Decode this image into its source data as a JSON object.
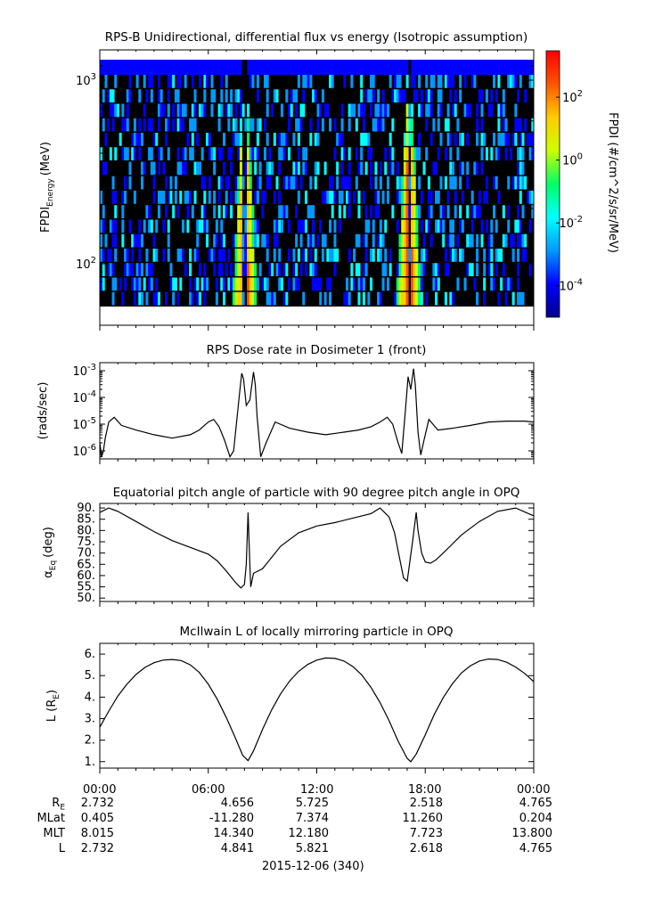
{
  "chart_data": [
    {
      "type": "heatmap",
      "title": "RPS-B  Unidirectional, differential flux vs energy (Isotropic assumption)",
      "ylabel": "FPDI",
      "ylabel_sub": "Energy",
      "ylabel_unit": "(MeV)",
      "y_scale": "log",
      "y_ticks": [
        {
          "base": "10",
          "exp": "2",
          "value": 100
        },
        {
          "base": "10",
          "exp": "3",
          "value": 1000
        }
      ],
      "colorbar": {
        "label": "FPDI (#/cm^2/s/sr/MeV)",
        "scale": "log",
        "range": [
          1e-05,
          3000
        ],
        "ticks": [
          {
            "base": "10",
            "exp": "2",
            "value": 100
          },
          {
            "base": "10",
            "exp": "0",
            "value": 1
          },
          {
            "base": "10",
            "exp": "-2",
            "value": 0.01
          },
          {
            "base": "10",
            "exp": "-4",
            "value": 0.0001
          }
        ]
      },
      "bright_bands_hours": [
        7.9,
        8.15,
        16.95,
        17.25
      ],
      "gap_hours": [
        8.0,
        17.1
      ],
      "colors": [
        "#00008b",
        "#0000ff",
        "#0099ff",
        "#00ffff",
        "#00ff66",
        "#ccff00",
        "#ffcc00",
        "#ff5500",
        "#ff0000"
      ]
    },
    {
      "type": "line",
      "title": "RPS  Dose rate in Dosimeter 1 (front)",
      "ylabel": "(rads/sec)",
      "y_scale": "log",
      "ylim": [
        5e-07,
        0.002
      ],
      "y_ticks": [
        {
          "base": "10",
          "exp": "-3",
          "value": 0.001
        },
        {
          "base": "10",
          "exp": "-4",
          "value": 0.0001
        },
        {
          "base": "10",
          "exp": "-5",
          "value": 1e-05
        },
        {
          "base": "10",
          "exp": "-6",
          "value": 1e-06
        }
      ],
      "series": [
        {
          "x": [
            0,
            0.1,
            0.2,
            0.3,
            0.5,
            0.8,
            1.2,
            2.0,
            3.0,
            4.0,
            5.0,
            5.5,
            6.0,
            6.3,
            6.6,
            6.9,
            7.2,
            7.4,
            7.6,
            7.75,
            7.85,
            7.95,
            8.1,
            8.3,
            8.5,
            8.6,
            8.7,
            8.9,
            9.2,
            9.7,
            10.5,
            11.5,
            12.5,
            13.5,
            14.3,
            15.0,
            15.5,
            15.9,
            16.2,
            16.5,
            16.7,
            16.9,
            17.05,
            17.2,
            17.35,
            17.45,
            17.6,
            17.75,
            17.9,
            18.2,
            18.7,
            19.5,
            20.5,
            21.5,
            22.5,
            23.5,
            24
          ],
          "y": [
            2e-06,
            6e-07,
            1e-06,
            3e-06,
            1.2e-05,
            1.8e-05,
            9e-06,
            6e-06,
            4e-06,
            3e-06,
            4e-06,
            6e-06,
            1.2e-05,
            1.5e-05,
            8e-06,
            2.5e-06,
            6e-07,
            1e-06,
            2e-05,
            0.0002,
            0.0008,
            0.0005,
            5e-05,
            8e-05,
            0.0009,
            0.0003,
            2e-05,
            6e-07,
            2e-06,
            1.2e-05,
            7e-06,
            5e-06,
            4e-06,
            5e-06,
            6e-06,
            8e-06,
            1.2e-05,
            1.8e-05,
            1e-05,
            2e-06,
            8e-07,
            3e-05,
            0.0006,
            0.0002,
            0.0012,
            0.0003,
            5e-06,
            7e-07,
            2e-06,
            1.5e-05,
            6e-06,
            7e-06,
            9e-06,
            1.2e-05,
            1.3e-05,
            1.3e-05,
            1.2e-05
          ]
        }
      ]
    },
    {
      "type": "line",
      "title": "Equatorial pitch angle of particle with 90 degree pitch angle in OPQ",
      "ylabel": "α",
      "ylabel_sub": "Eq",
      "ylabel_unit": "(deg)",
      "ylim": [
        48.5,
        92
      ],
      "y_ticks": [
        50,
        55,
        60,
        65,
        70,
        75,
        80,
        85,
        90
      ],
      "series": [
        {
          "x": [
            0,
            0.5,
            1,
            2,
            3,
            4,
            5,
            6,
            6.5,
            7,
            7.5,
            7.8,
            8.0,
            8.1,
            8.2,
            8.3,
            8.35,
            8.5,
            9,
            10,
            11,
            12,
            13,
            14,
            15,
            15.5,
            16,
            16.3,
            16.6,
            16.8,
            17.0,
            17.3,
            17.5,
            17.6,
            17.8,
            18.0,
            18.3,
            18.6,
            19,
            19.5,
            20,
            21,
            22,
            23,
            24
          ],
          "y": [
            88,
            90,
            88.5,
            84,
            79.5,
            75.5,
            72.5,
            69.5,
            66.5,
            62,
            57,
            54.5,
            56,
            65,
            88,
            65,
            55,
            61,
            63,
            73,
            79,
            82,
            83.5,
            85.5,
            87.5,
            90,
            86,
            79,
            67,
            59,
            57.5,
            75,
            88,
            80,
            70,
            66,
            65.5,
            67,
            70,
            74,
            78,
            84,
            88.5,
            90,
            86.5
          ]
        }
      ]
    },
    {
      "type": "line",
      "title": "McIlwain L of locally mirroring particle in OPQ",
      "ylabel": "L (R",
      "ylabel_sub": "E",
      "ylabel_unit": ")",
      "ylim": [
        0.7,
        6.5
      ],
      "y_ticks": [
        1,
        2,
        3,
        4,
        5,
        6
      ],
      "series": [
        {
          "x": [
            0,
            0.5,
            1,
            1.5,
            2,
            2.5,
            3,
            3.5,
            4,
            4.5,
            5,
            5.5,
            6,
            6.5,
            7,
            7.5,
            7.9,
            8.2,
            8.5,
            9,
            9.5,
            10,
            10.5,
            11,
            11.5,
            12,
            12.5,
            13,
            13.5,
            14,
            14.5,
            15,
            15.5,
            16,
            16.5,
            17,
            17.2,
            17.5,
            18,
            18.5,
            19,
            19.5,
            20,
            20.5,
            21,
            21.5,
            22,
            22.5,
            23,
            23.5,
            24
          ],
          "y": [
            2.6,
            3.35,
            4.05,
            4.6,
            5.05,
            5.38,
            5.6,
            5.72,
            5.75,
            5.7,
            5.5,
            5.15,
            4.6,
            3.9,
            3.05,
            2.1,
            1.3,
            1.05,
            1.5,
            2.5,
            3.4,
            4.15,
            4.75,
            5.2,
            5.52,
            5.72,
            5.82,
            5.8,
            5.68,
            5.42,
            5.02,
            4.45,
            3.75,
            2.9,
            1.95,
            1.15,
            1.0,
            1.35,
            2.25,
            3.2,
            3.98,
            4.62,
            5.12,
            5.46,
            5.68,
            5.77,
            5.75,
            5.62,
            5.4,
            5.1,
            4.72
          ]
        }
      ]
    }
  ],
  "time_axis": {
    "labels": [
      "00:00",
      "06:00",
      "12:00",
      "18:00",
      "00:00"
    ],
    "date_label": "2015-12-06 (340)"
  },
  "ephemeris": {
    "rows": [
      {
        "label": "R",
        "sub": "E",
        "values": [
          "2.732",
          "4.656",
          "5.725",
          "2.518",
          "4.765"
        ]
      },
      {
        "label": "MLat",
        "sub": "",
        "values": [
          "0.405",
          "-11.280",
          "7.374",
          "11.260",
          "0.204"
        ]
      },
      {
        "label": "MLT",
        "sub": "",
        "values": [
          "8.015",
          "14.340",
          "12.180",
          "7.723",
          "13.800"
        ]
      },
      {
        "label": "L",
        "sub": "",
        "values": [
          "2.732",
          "4.841",
          "5.821",
          "2.618",
          "4.765"
        ]
      }
    ]
  }
}
